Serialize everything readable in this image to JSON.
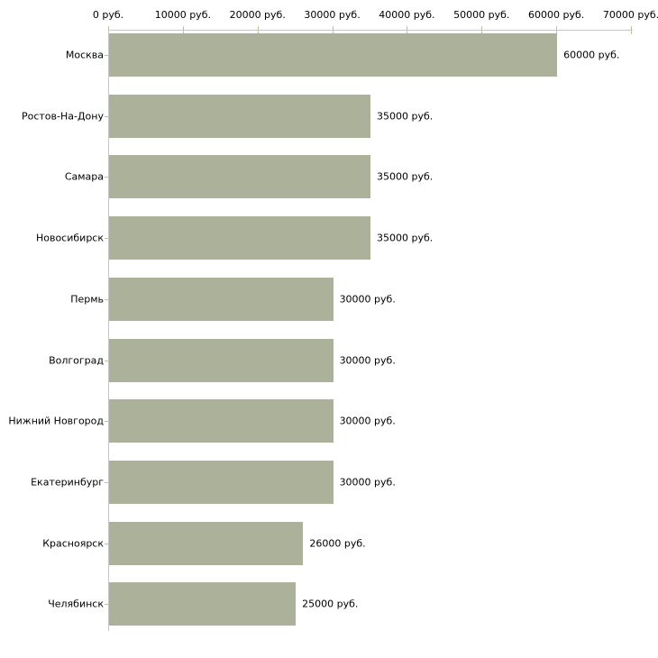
{
  "chart_data": {
    "type": "bar",
    "orientation": "horizontal",
    "title": "",
    "xlabel": "",
    "ylabel": "",
    "unit": "руб.",
    "categories": [
      "Москва",
      "Ростов-На-Дону",
      "Самара",
      "Новосибирск",
      "Пермь",
      "Волгоград",
      "Нижний Новгород",
      "Екатеринбург",
      "Красноярск",
      "Челябинск"
    ],
    "values": [
      60000,
      35000,
      35000,
      35000,
      30000,
      30000,
      30000,
      30000,
      26000,
      25000
    ],
    "value_labels": [
      "60000 руб.",
      "35000 руб.",
      "35000 руб.",
      "35000 руб.",
      "30000 руб.",
      "30000 руб.",
      "30000 руб.",
      "30000 руб.",
      "26000 руб.",
      "25000 руб."
    ],
    "x_tick_values": [
      0,
      10000,
      20000,
      30000,
      40000,
      50000,
      60000,
      70000
    ],
    "x_tick_labels": [
      "0 руб.",
      "10000 руб.",
      "20000 руб.",
      "30000 руб.",
      "40000 руб.",
      "50000 руб.",
      "60000 руб.",
      "70000 руб."
    ],
    "xlim": [
      0,
      70000
    ],
    "grid": false,
    "legend": false,
    "colors": {
      "bar": "#acb299",
      "axis_line": "#c6c6c6",
      "tick_mark": "#c3c09a",
      "text": "#000000",
      "background": "#ffffff"
    }
  }
}
